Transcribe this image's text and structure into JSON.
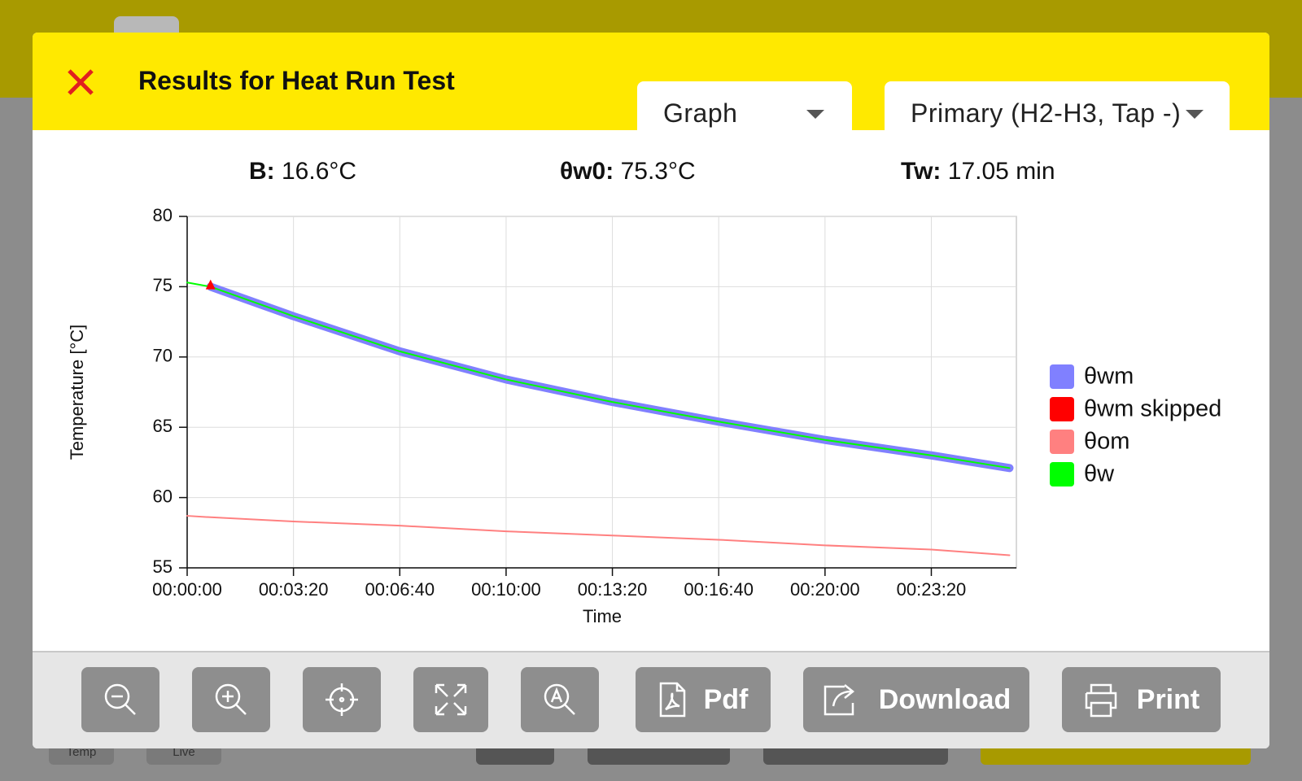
{
  "background": {
    "tabs": [
      "Temp",
      "Live"
    ]
  },
  "header": {
    "title": "Results for Heat Run Test",
    "view_select": "Graph",
    "winding_select": "Primary (H2-H3, Tap -)"
  },
  "stats": [
    {
      "label": "B:",
      "value": "16.6°C"
    },
    {
      "label": "θw0:",
      "value": "75.3°C"
    },
    {
      "label": "Tw:",
      "value": "17.05 min"
    }
  ],
  "chart_data": {
    "type": "line",
    "xlabel": "Time",
    "ylabel": "Temperature [°C]",
    "x": [
      0,
      44,
      200,
      400,
      600,
      800,
      1000,
      1200,
      1400,
      1547
    ],
    "series": [
      {
        "name": "θwm",
        "color": "#8080ff",
        "line_width": 10,
        "values": [
          null,
          75.0,
          72.9,
          70.4,
          68.4,
          66.8,
          65.4,
          64.1,
          63.0,
          62.1
        ]
      },
      {
        "name": "θwm skipped",
        "color": "#ff0000",
        "marker": "triangle",
        "values": [
          null,
          75.1,
          null,
          null,
          null,
          null,
          null,
          null,
          null,
          null
        ]
      },
      {
        "name": "θom",
        "color": "#ff8080",
        "line_width": 2,
        "values": [
          58.7,
          58.6,
          58.3,
          58.0,
          57.6,
          57.3,
          57.0,
          56.6,
          56.3,
          55.9
        ]
      },
      {
        "name": "θw",
        "color": "#00ff00",
        "line_width": 2,
        "values": [
          75.3,
          75.0,
          72.9,
          70.4,
          68.4,
          66.8,
          65.4,
          64.1,
          63.0,
          62.1
        ]
      }
    ],
    "xlim": [
      0,
      1560
    ],
    "ylim": [
      55,
      80
    ],
    "xticks": [
      {
        "value": 0,
        "label": "00:00:00"
      },
      {
        "value": 200,
        "label": "00:03:20"
      },
      {
        "value": 400,
        "label": "00:06:40"
      },
      {
        "value": 600,
        "label": "00:10:00"
      },
      {
        "value": 800,
        "label": "00:13:20"
      },
      {
        "value": 1000,
        "label": "00:16:40"
      },
      {
        "value": 1200,
        "label": "00:20:00"
      },
      {
        "value": 1400,
        "label": "00:23:20"
      }
    ],
    "yticks": [
      55,
      60,
      65,
      70,
      75,
      80
    ],
    "grid": true,
    "legend": "right"
  },
  "toolbar": {
    "buttons": [
      "Pdf",
      "Download",
      "Print"
    ]
  }
}
